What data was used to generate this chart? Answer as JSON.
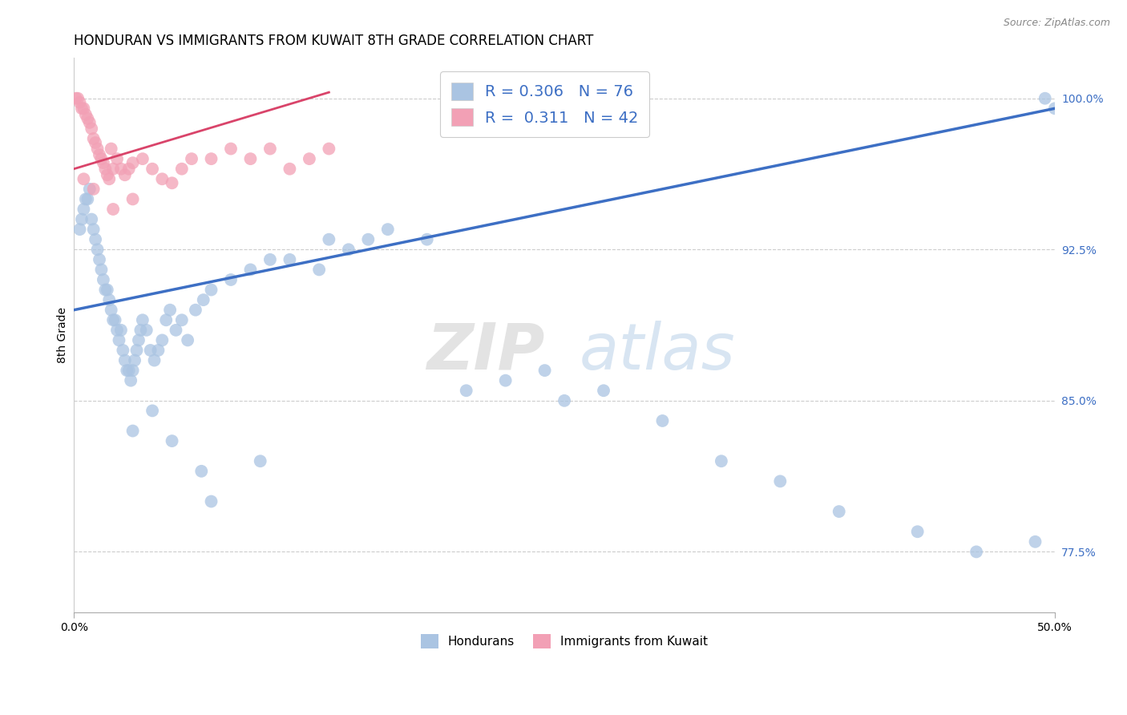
{
  "title": "HONDURAN VS IMMIGRANTS FROM KUWAIT 8TH GRADE CORRELATION CHART",
  "source": "Source: ZipAtlas.com",
  "xlabel_hondurans": "Hondurans",
  "xlabel_kuwait": "Immigrants from Kuwait",
  "ylabel": "8th Grade",
  "xlim": [
    0.0,
    50.0
  ],
  "ylim": [
    74.5,
    102.0
  ],
  "yticks": [
    77.5,
    85.0,
    92.5,
    100.0
  ],
  "r_blue": "0.306",
  "n_blue": "76",
  "r_pink": "0.311",
  "n_pink": "42",
  "blue_color": "#aac4e2",
  "pink_color": "#f2a0b5",
  "blue_line_color": "#3d6fc4",
  "pink_line_color": "#d9446a",
  "blue_trend_x0": 0.0,
  "blue_trend_y0": 89.5,
  "blue_trend_x1": 50.0,
  "blue_trend_y1": 99.5,
  "pink_trend_x0": 0.0,
  "pink_trend_y0": 96.5,
  "pink_trend_x1": 13.0,
  "pink_trend_y1": 100.3,
  "title_fontsize": 12,
  "label_fontsize": 10,
  "tick_fontsize": 10,
  "blue_x": [
    0.3,
    0.4,
    0.5,
    0.6,
    0.7,
    0.8,
    0.9,
    1.0,
    1.1,
    1.2,
    1.3,
    1.4,
    1.5,
    1.6,
    1.7,
    1.8,
    1.9,
    2.0,
    2.1,
    2.2,
    2.3,
    2.4,
    2.5,
    2.6,
    2.7,
    2.8,
    2.9,
    3.0,
    3.1,
    3.2,
    3.3,
    3.4,
    3.5,
    3.7,
    3.9,
    4.1,
    4.3,
    4.5,
    4.7,
    4.9,
    5.2,
    5.5,
    5.8,
    6.2,
    6.6,
    7.0,
    8.0,
    9.0,
    10.0,
    11.0,
    12.5,
    13.0,
    14.0,
    15.0,
    16.0,
    18.0,
    20.0,
    22.0,
    24.0,
    25.0,
    27.0,
    30.0,
    33.0,
    36.0,
    39.0,
    43.0,
    46.0,
    49.0,
    49.5,
    50.0,
    7.0,
    9.5,
    3.0,
    4.0,
    5.0,
    6.5
  ],
  "blue_y": [
    93.5,
    94.0,
    94.5,
    95.0,
    95.0,
    95.5,
    94.0,
    93.5,
    93.0,
    92.5,
    92.0,
    91.5,
    91.0,
    90.5,
    90.5,
    90.0,
    89.5,
    89.0,
    89.0,
    88.5,
    88.0,
    88.5,
    87.5,
    87.0,
    86.5,
    86.5,
    86.0,
    86.5,
    87.0,
    87.5,
    88.0,
    88.5,
    89.0,
    88.5,
    87.5,
    87.0,
    87.5,
    88.0,
    89.0,
    89.5,
    88.5,
    89.0,
    88.0,
    89.5,
    90.0,
    90.5,
    91.0,
    91.5,
    92.0,
    92.0,
    91.5,
    93.0,
    92.5,
    93.0,
    93.5,
    93.0,
    85.5,
    86.0,
    86.5,
    85.0,
    85.5,
    84.0,
    82.0,
    81.0,
    79.5,
    78.5,
    77.5,
    78.0,
    100.0,
    99.5,
    80.0,
    82.0,
    83.5,
    84.5,
    83.0,
    81.5
  ],
  "pink_x": [
    0.1,
    0.2,
    0.3,
    0.4,
    0.5,
    0.6,
    0.7,
    0.8,
    0.9,
    1.0,
    1.1,
    1.2,
    1.3,
    1.4,
    1.5,
    1.6,
    1.7,
    1.8,
    1.9,
    2.0,
    2.2,
    2.4,
    2.6,
    2.8,
    3.0,
    3.5,
    4.0,
    4.5,
    5.0,
    5.5,
    6.0,
    7.0,
    8.0,
    9.0,
    10.0,
    11.0,
    12.0,
    13.0,
    0.5,
    1.0,
    2.0,
    3.0
  ],
  "pink_y": [
    100.0,
    100.0,
    99.8,
    99.5,
    99.5,
    99.2,
    99.0,
    98.8,
    98.5,
    98.0,
    97.8,
    97.5,
    97.2,
    97.0,
    96.8,
    96.5,
    96.2,
    96.0,
    97.5,
    96.5,
    97.0,
    96.5,
    96.2,
    96.5,
    96.8,
    97.0,
    96.5,
    96.0,
    95.8,
    96.5,
    97.0,
    97.0,
    97.5,
    97.0,
    97.5,
    96.5,
    97.0,
    97.5,
    96.0,
    95.5,
    94.5,
    95.0
  ]
}
